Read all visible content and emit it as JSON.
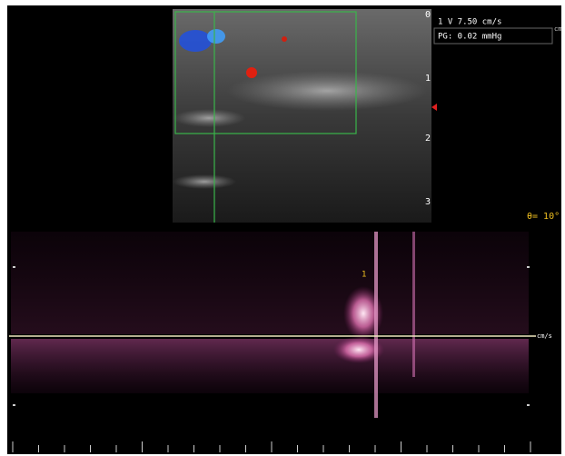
{
  "overlay": {
    "velocity": "1 V 7.50 cm/s",
    "pressure": "PG: 0.02 mmHg",
    "unit_cut": "cm",
    "angle": "θ= 10°"
  },
  "depth_scale": [
    "0",
    "1",
    "2",
    "3"
  ],
  "spectrum": {
    "baseline_unit": "cm/s",
    "cursor_label": "1"
  }
}
